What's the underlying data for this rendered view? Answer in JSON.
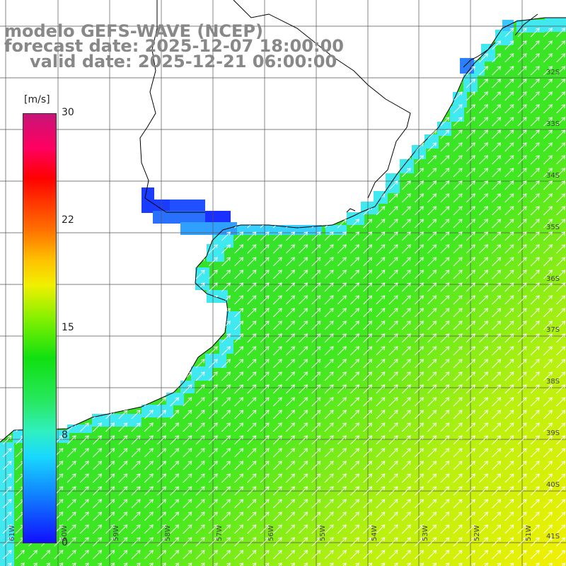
{
  "title": {
    "model": "modelo GEFS-WAVE (NCEP)",
    "forecast": "forecast date: 2025-12-07 18:00:00",
    "valid": "valid date: 2025-12-21 06:00:00"
  },
  "colorbar": {
    "unit": "[m/s]",
    "ticks": [
      "30",
      "22",
      "15",
      "8",
      "0"
    ],
    "min": 0,
    "max": 30
  },
  "lat_labels": [
    "32S",
    "33S",
    "34S",
    "35S",
    "36S",
    "37S",
    "38S",
    "39S",
    "40S",
    "41S"
  ],
  "lon_labels": [
    "61W",
    "60W",
    "59W",
    "58W",
    "57W",
    "56W",
    "55W",
    "54W",
    "53W",
    "52W",
    "51W"
  ],
  "colors": {
    "land": "#ffffff",
    "grid": "#555555",
    "coast": "#000000",
    "arrow": "#ffffff",
    "title": "#888888"
  }
}
